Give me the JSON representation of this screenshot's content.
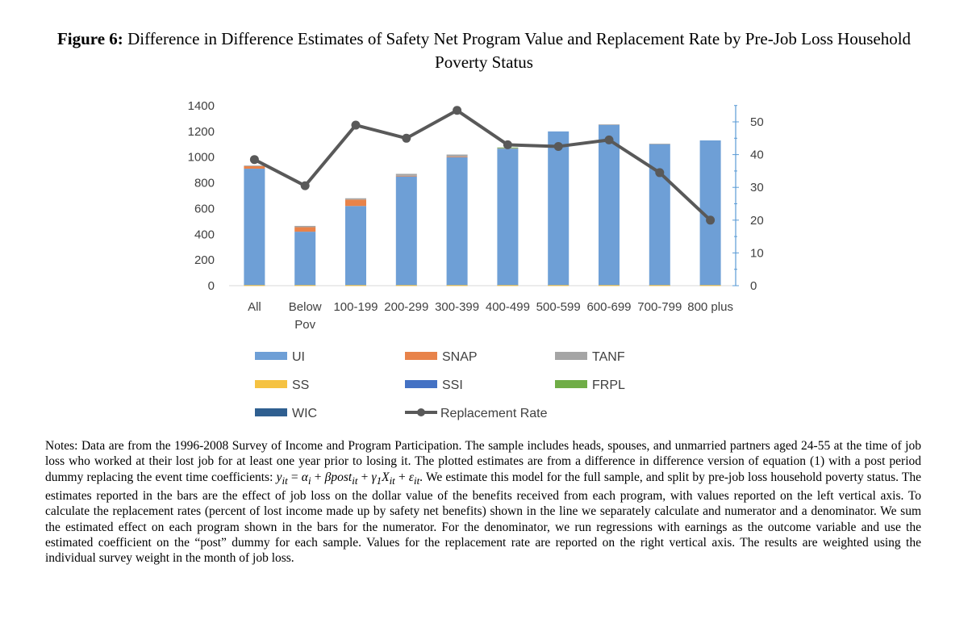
{
  "figure": {
    "label": "Figure 6:",
    "title": "Difference in Difference Estimates of Safety Net Program Value and Replacement Rate by Pre-Job Loss Household Poverty Status"
  },
  "chart_data": {
    "type": "bar",
    "stacked": true,
    "categories": [
      "All",
      "Below Pov",
      "100-199",
      "200-299",
      "300-399",
      "400-499",
      "500-599",
      "600-699",
      "700-799",
      "800 plus"
    ],
    "series": [
      {
        "name": "UI",
        "color": "#6e9fd6",
        "values": [
          910,
          420,
          620,
          850,
          1000,
          1065,
          1200,
          1250,
          1100,
          1130
        ]
      },
      {
        "name": "SNAP",
        "color": "#e8834a",
        "values": [
          20,
          35,
          50,
          5,
          5,
          0,
          0,
          0,
          0,
          0
        ]
      },
      {
        "name": "TANF",
        "color": "#a5a5a5",
        "values": [
          5,
          10,
          10,
          15,
          15,
          5,
          0,
          5,
          5,
          0
        ]
      },
      {
        "name": "SS",
        "color": "#f5c242",
        "values": [
          0,
          0,
          0,
          0,
          0,
          0,
          0,
          0,
          0,
          0
        ]
      },
      {
        "name": "SSI",
        "color": "#4472c4",
        "values": [
          0,
          0,
          0,
          0,
          0,
          0,
          0,
          0,
          0,
          0
        ]
      },
      {
        "name": "FRPL",
        "color": "#70ad47",
        "values": [
          0,
          0,
          0,
          0,
          0,
          5,
          0,
          0,
          0,
          0
        ]
      },
      {
        "name": "WIC",
        "color": "#2f5f90",
        "values": [
          0,
          0,
          0,
          0,
          0,
          0,
          0,
          0,
          0,
          0
        ]
      }
    ],
    "line": {
      "name": "Replacement Rate",
      "color": "#595959",
      "values": [
        38.5,
        30.5,
        49,
        45,
        53.5,
        43,
        42.5,
        44.5,
        34.5,
        20
      ]
    },
    "y_left": {
      "ticks": [
        "0",
        "200",
        "400",
        "600",
        "800",
        "1000",
        "1200",
        "1400"
      ],
      "ylim": [
        0,
        1400
      ]
    },
    "y_right": {
      "ticks": [
        "0",
        "10",
        "20",
        "30",
        "40",
        "50"
      ],
      "ylim": [
        0,
        55
      ]
    },
    "legend_position": "bottom"
  },
  "notes": {
    "p1": "Notes: Data are from the 1996-2008 Survey of Income and Program Participation. The sample includes heads, spouses, and unmarried partners aged 24-55 at the time of job loss who worked at their lost job for at least one year prior to losing it. The plotted estimates are from a difference in difference version of equation (1) with a post period dummy replacing the event time coefficients:",
    "eq1": "y",
    "eq1_sub": "it",
    "eq_eq": " = ",
    "eq_rest": "α",
    "p2": ". We estimate this model for the full sample, and split by pre-job loss household poverty status. The estimates reported in the bars are the effect of job loss on the dollar value of the benefits received from each program, with values reported on the left vertical axis. To calculate the replacement rates (percent of lost income made up by safety net benefits) shown in the line we separately calculate and numerator and a denominator. We sum the estimated effect on each program shown in the bars for the numerator. For the denominator, we run regressions with earnings as the outcome variable and use the estimated coefficient on the “post” dummy for each sample. Values for the replacement rate are reported on the right vertical axis. The results are weighted using the individual survey weight in the month of job loss.",
    "m_alpha": "α",
    "m_i": "i",
    "m_plus1": " + ",
    "m_beta": "βpost",
    "m_it1": "it",
    "m_plus2": " + ",
    "m_gamma": "γ",
    "m_1": "1",
    "m_X": "X",
    "m_it2": "it",
    "m_plus3": " + ",
    "m_eps": "ε",
    "m_it3": "it"
  }
}
